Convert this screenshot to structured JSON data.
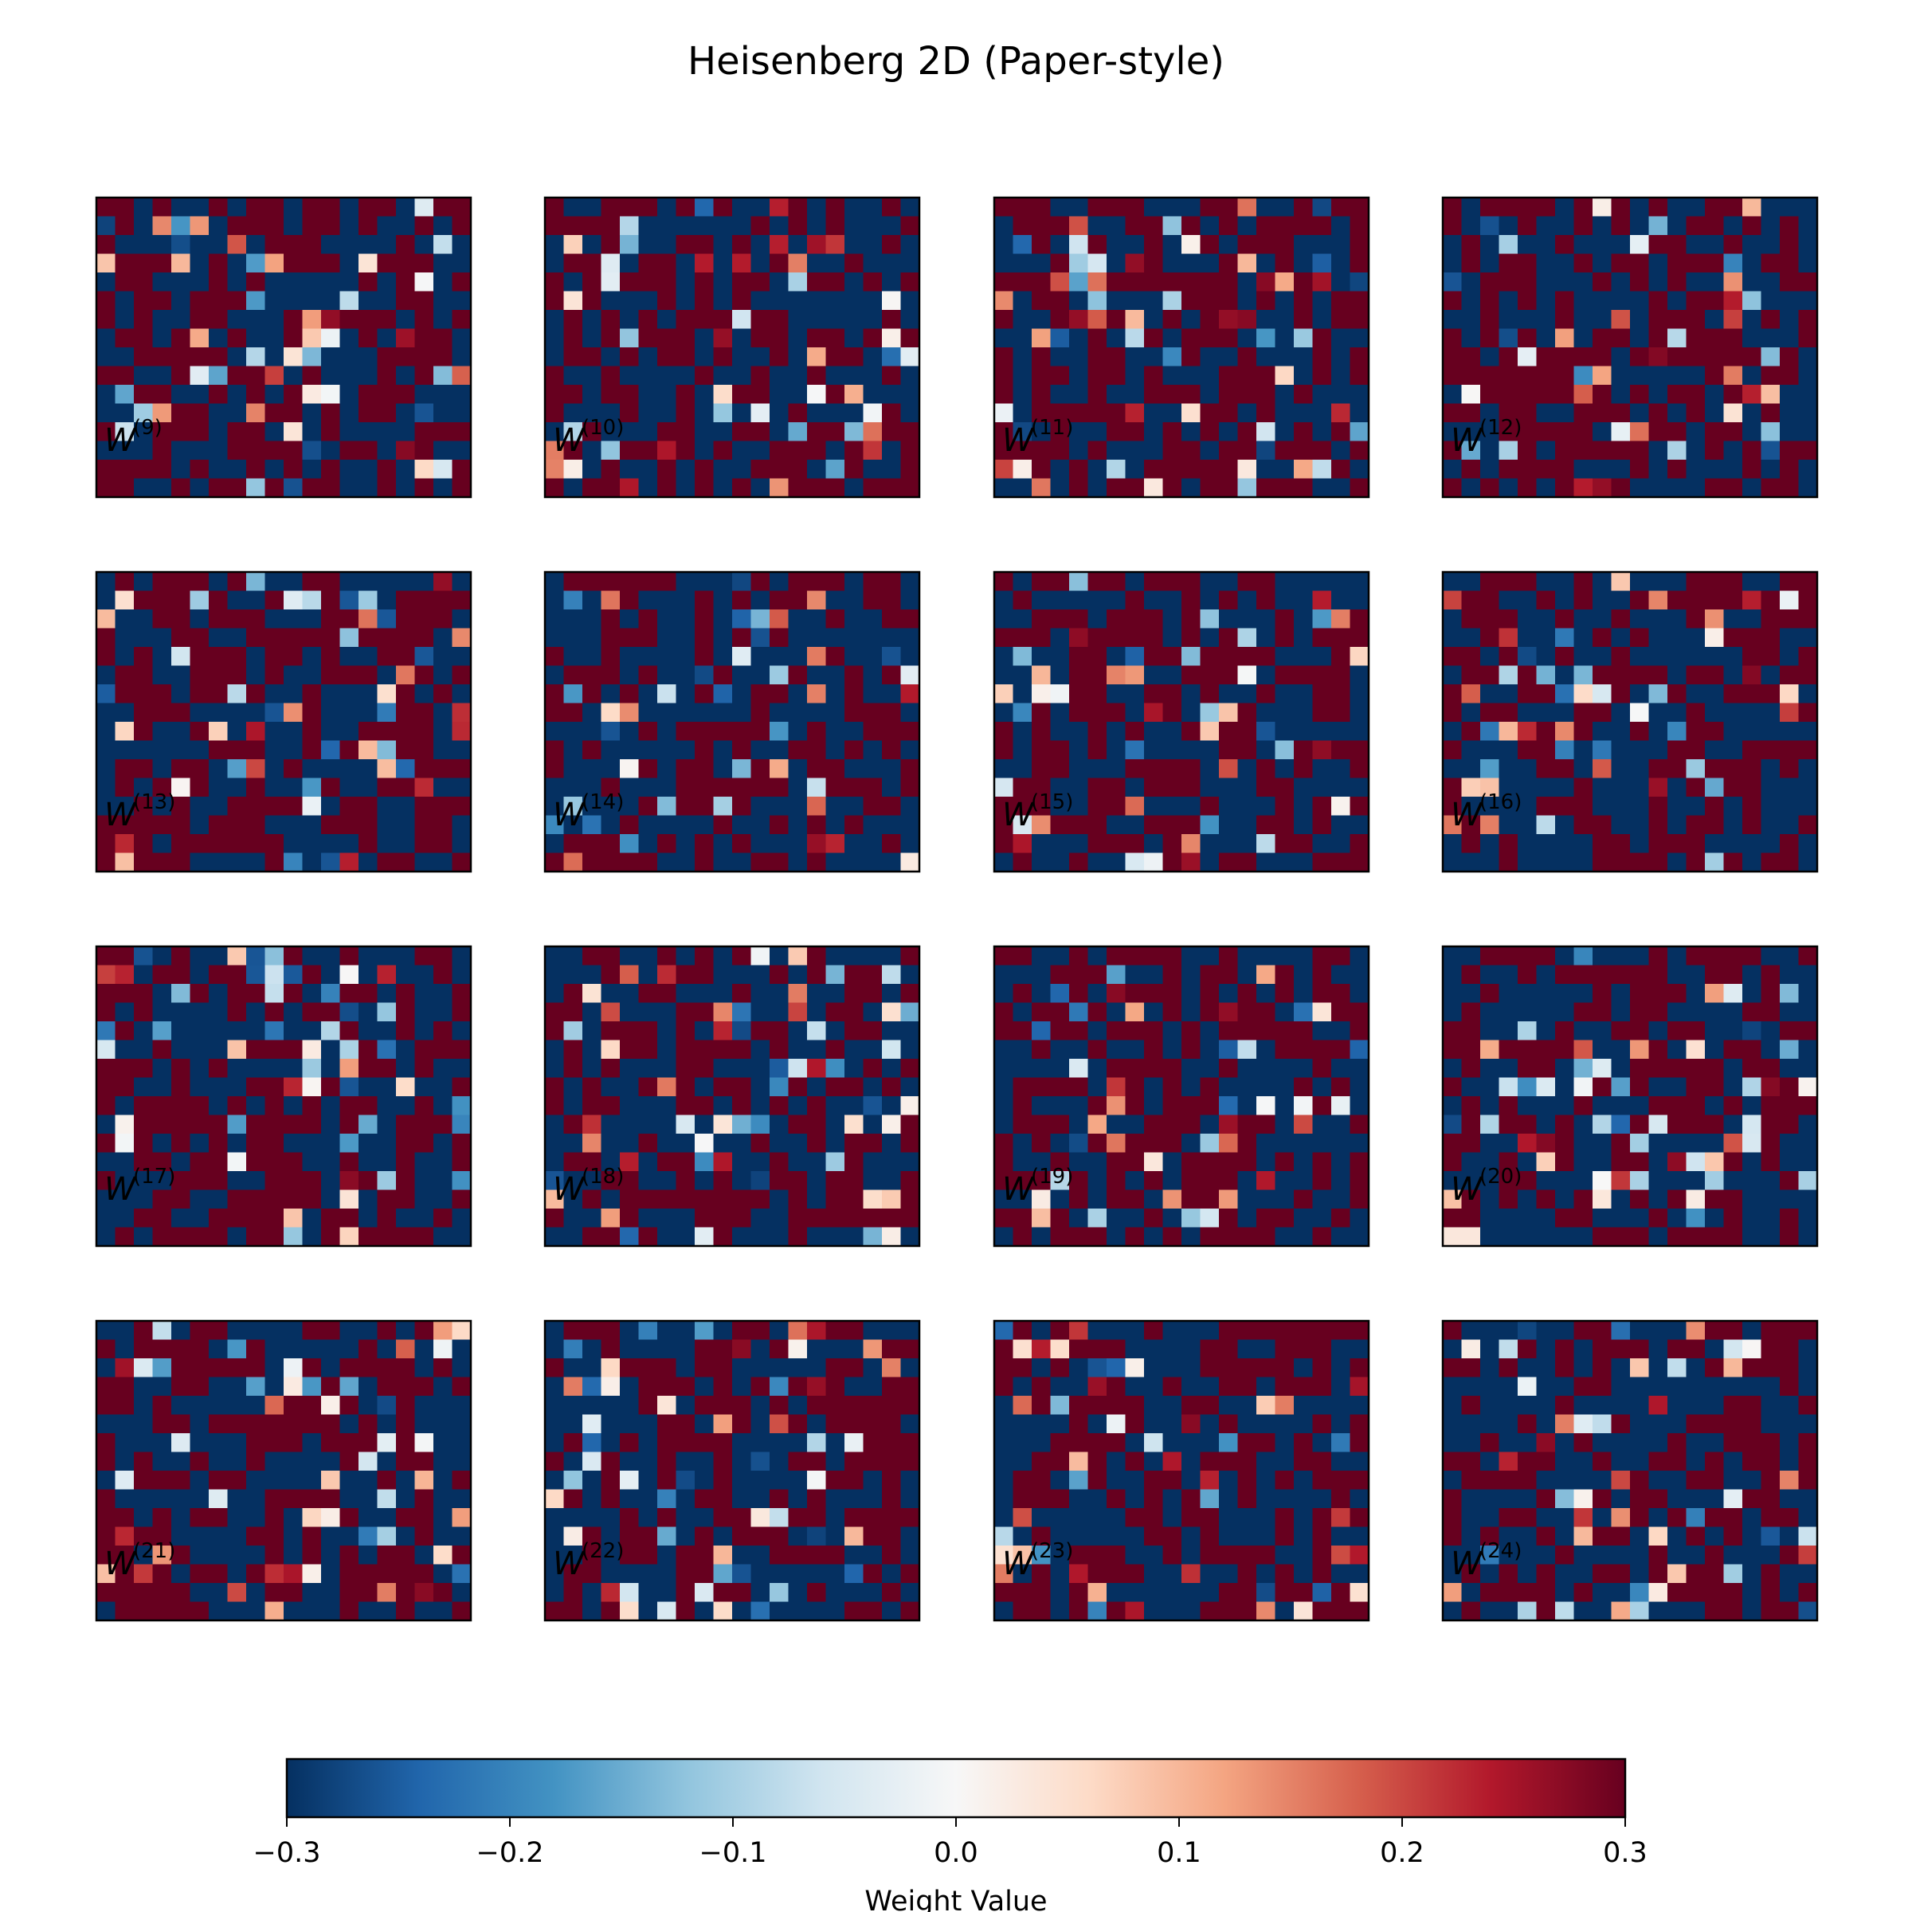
{
  "chart_data": {
    "type": "heatmap",
    "title": "Heisenberg 2D (Paper-style)",
    "grid": false,
    "layout": {
      "rows": 4,
      "cols": 4
    },
    "cells_per_panel": {
      "cols": 20,
      "rows": 16
    },
    "value_range": [
      -0.3,
      0.3
    ],
    "colormap": "RdBu_r",
    "colormap_stops": [
      "#053061",
      "#2166ac",
      "#4393c3",
      "#92c5de",
      "#d1e5f0",
      "#f7f7f7",
      "#fddbc7",
      "#f4a582",
      "#d6604d",
      "#b2182b",
      "#67001f"
    ],
    "panels": [
      {
        "label": "W",
        "superscript": "(9)",
        "seed": 9
      },
      {
        "label": "W",
        "superscript": "(10)",
        "seed": 10
      },
      {
        "label": "W",
        "superscript": "(11)",
        "seed": 11
      },
      {
        "label": "W",
        "superscript": "(12)",
        "seed": 12
      },
      {
        "label": "W",
        "superscript": "(13)",
        "seed": 13
      },
      {
        "label": "W",
        "superscript": "(14)",
        "seed": 14
      },
      {
        "label": "W",
        "superscript": "(15)",
        "seed": 15
      },
      {
        "label": "W",
        "superscript": "(16)",
        "seed": 16
      },
      {
        "label": "W",
        "superscript": "(17)",
        "seed": 17
      },
      {
        "label": "W",
        "superscript": "(18)",
        "seed": 18
      },
      {
        "label": "W",
        "superscript": "(19)",
        "seed": 19
      },
      {
        "label": "W",
        "superscript": "(20)",
        "seed": 20
      },
      {
        "label": "W",
        "superscript": "(21)",
        "seed": 21
      },
      {
        "label": "W",
        "superscript": "(22)",
        "seed": 22
      },
      {
        "label": "W",
        "superscript": "(23)",
        "seed": 23
      },
      {
        "label": "W",
        "superscript": "(24)",
        "seed": 24
      }
    ],
    "colorbar": {
      "label": "Weight Value",
      "ticks": [
        -0.3,
        -0.2,
        -0.1,
        0.0,
        0.1,
        0.2,
        0.3
      ],
      "tick_labels": [
        "−0.3",
        "−0.2",
        "−0.1",
        "0.0",
        "0.1",
        "0.2",
        "0.3"
      ]
    }
  }
}
